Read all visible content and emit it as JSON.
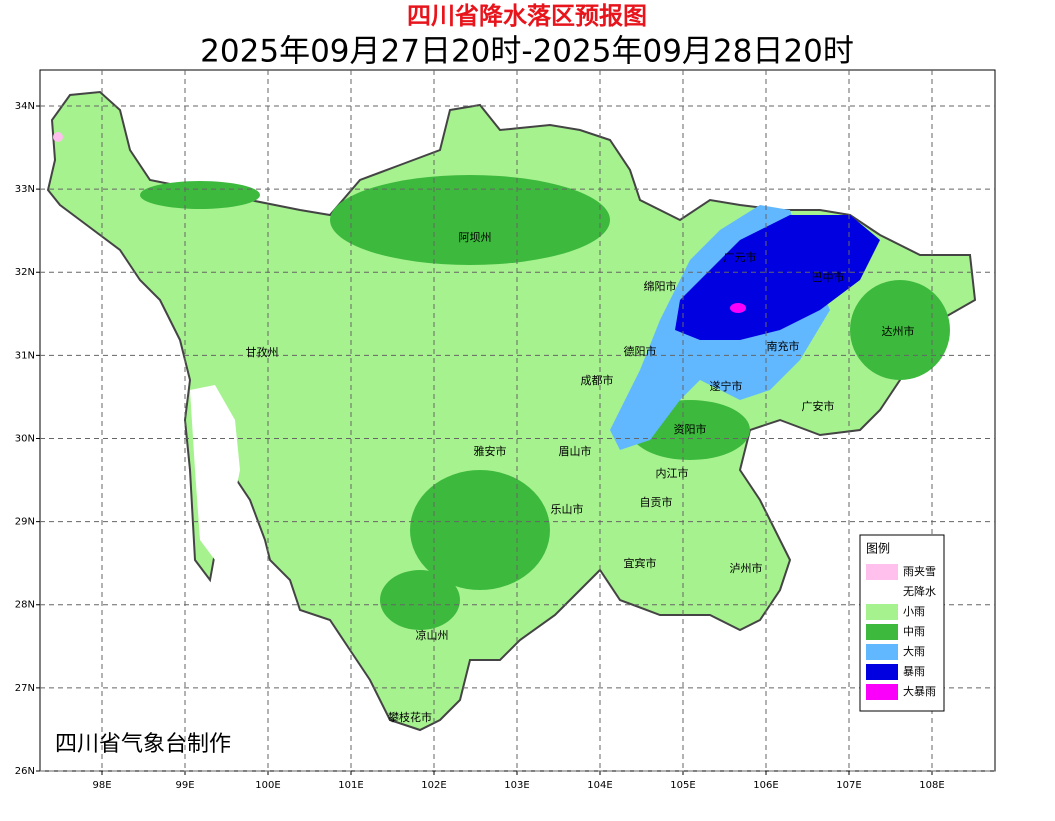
{
  "header": {
    "title": "四川省降水落区预报图",
    "subtitle": "2025年09月27日20时-2025年09月28日20时"
  },
  "map": {
    "xlim": [
      97.253,
      108.759
    ],
    "ylim": [
      26,
      34.433
    ],
    "xticks": [
      {
        "value": 98,
        "label": "98E"
      },
      {
        "value": 99,
        "label": "99E"
      },
      {
        "value": 100,
        "label": "100E"
      },
      {
        "value": 101,
        "label": "101E"
      },
      {
        "value": 102,
        "label": "102E"
      },
      {
        "value": 103,
        "label": "103E"
      },
      {
        "value": 104,
        "label": "104E"
      },
      {
        "value": 105,
        "label": "105E"
      },
      {
        "value": 106,
        "label": "106E"
      },
      {
        "value": 107,
        "label": "107E"
      },
      {
        "value": 108,
        "label": "108E"
      }
    ],
    "yticks": [
      {
        "value": 26,
        "label": "26N"
      },
      {
        "value": 27,
        "label": "27N"
      },
      {
        "value": 28,
        "label": "28N"
      },
      {
        "value": 29,
        "label": "29N"
      },
      {
        "value": 30,
        "label": "30N"
      },
      {
        "value": 31,
        "label": "31N"
      },
      {
        "value": 32,
        "label": "32N"
      },
      {
        "value": 33,
        "label": "33N"
      },
      {
        "value": 34,
        "label": "34N"
      }
    ],
    "grid": true,
    "cities": [
      "阿坝州",
      "甘孜州",
      "绵阳市",
      "广元市",
      "巴中市",
      "达州市",
      "德阳市",
      "南充市",
      "成都市",
      "遂宁市",
      "广安市",
      "资阳市",
      "雅安市",
      "眉山市",
      "内江市",
      "自贡市",
      "乐山市",
      "宜宾市",
      "泸州市",
      "凉山州",
      "攀枝花市"
    ]
  },
  "legend": {
    "title": "图例",
    "items": [
      {
        "label": "雨夹雪",
        "color": "#ffc0ee"
      },
      {
        "label": "无降水",
        "color": "#ffffff"
      },
      {
        "label": "小雨",
        "color": "#a6f28f"
      },
      {
        "label": "中雨",
        "color": "#3dba3d"
      },
      {
        "label": "大雨",
        "color": "#61b8ff"
      },
      {
        "label": "暴雨",
        "color": "#0000e1"
      },
      {
        "label": "大暴雨",
        "color": "#fa00fa"
      }
    ]
  },
  "footer": {
    "credit": "四川省气象台制作"
  }
}
